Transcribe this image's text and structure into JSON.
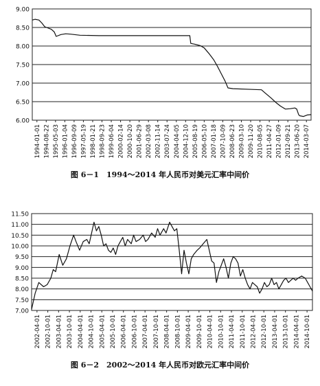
{
  "chart_data": [
    {
      "type": "line",
      "caption": "图 6－1　1994～2014 年人民币对美元汇率中间价",
      "ylim": [
        6.0,
        9.0
      ],
      "y_ticks": [
        "6.00",
        "6.50",
        "7.00",
        "7.50",
        "8.00",
        "8.50",
        "9.00"
      ],
      "x_tick_labels": [
        "1994-01-01",
        "1994-08-22",
        "1995-05-03",
        "1996-01-04",
        "1996-09-09",
        "1997-05-19",
        "1998-01-21",
        "1998-09-23",
        "1999-06-04",
        "2000-02-14",
        "2000-10-20",
        "2001-06-29",
        "2002-03-08",
        "2002-11-14",
        "2003-07-24",
        "2004-04-05",
        "2004-12-10",
        "2005-08-19",
        "2006-05-10",
        "2007-01-18",
        "2007-10-09",
        "2008-06-23",
        "2009-03-10",
        "2009-11-20",
        "2010-08-05",
        "2011-04-27",
        "2012-01-09",
        "2012-09-21",
        "2013-06-20",
        "2014-03-07"
      ],
      "grid": "horizontal",
      "series": [
        {
          "values": [
            [
              0,
              8.7
            ],
            [
              0.3,
              8.72
            ],
            [
              0.7,
              8.7
            ],
            [
              1,
              8.62
            ],
            [
              1.3,
              8.52
            ],
            [
              1.6,
              8.49
            ],
            [
              2,
              8.45
            ],
            [
              2.3,
              8.38
            ],
            [
              2.5,
              8.26
            ],
            [
              3,
              8.31
            ],
            [
              3.5,
              8.33
            ],
            [
              4,
              8.32
            ],
            [
              5,
              8.29
            ],
            [
              7,
              8.28
            ],
            [
              10,
              8.28
            ],
            [
              13,
              8.28
            ],
            [
              15,
              8.28
            ],
            [
              16.5,
              8.28
            ],
            [
              16.6,
              8.07
            ],
            [
              17,
              8.05
            ],
            [
              17.6,
              8.01
            ],
            [
              18,
              7.95
            ],
            [
              18.5,
              7.8
            ],
            [
              19,
              7.63
            ],
            [
              19.4,
              7.45
            ],
            [
              19.8,
              7.25
            ],
            [
              20.2,
              7.05
            ],
            [
              20.5,
              6.87
            ],
            [
              21,
              6.85
            ],
            [
              23,
              6.83
            ],
            [
              24,
              6.82
            ],
            [
              24.4,
              6.73
            ],
            [
              25,
              6.6
            ],
            [
              25.5,
              6.48
            ],
            [
              26,
              6.38
            ],
            [
              26.5,
              6.3
            ],
            [
              27,
              6.31
            ],
            [
              27.5,
              6.33
            ],
            [
              27.7,
              6.3
            ],
            [
              27.9,
              6.15
            ],
            [
              28,
              6.12
            ],
            [
              28.4,
              6.1
            ],
            [
              28.8,
              6.14
            ],
            [
              29.2,
              6.15
            ]
          ]
        }
      ]
    },
    {
      "type": "line",
      "caption": "图 6－2　2002～2014 年人民币对欧元汇率中间价",
      "ylim": [
        7.0,
        11.5
      ],
      "y_ticks": [
        "7.00",
        "7.50",
        "8.00",
        "8.50",
        "9.00",
        "9.50",
        "10.00",
        "10.50",
        "11.00",
        "11.50"
      ],
      "x_tick_labels": [
        "2002-04-01",
        "2002-10-01",
        "2003-04-01",
        "2003-10-01",
        "2004-04-01",
        "2004-10-01",
        "2005-04-01",
        "2005-10-01",
        "2006-04-01",
        "2006-10-01",
        "2007-04-01",
        "2007-10-01",
        "2008-04-01",
        "2008-10-01",
        "2009-04-01",
        "2009-10-01",
        "2010-04-01",
        "2010-10-01",
        "2011-04-01",
        "2011-10-01",
        "2012-04-01",
        "2012-10-01",
        "2013-04-01",
        "2013-10-01",
        "2014-04-01",
        "2014-10-01"
      ],
      "grid": "horizontal",
      "series": [
        {
          "values": [
            [
              0,
              7.05
            ],
            [
              0.3,
              7.8
            ],
            [
              0.6,
              8.3
            ],
            [
              1,
              8.1
            ],
            [
              1.3,
              8.2
            ],
            [
              1.6,
              8.5
            ],
            [
              1.8,
              8.9
            ],
            [
              2,
              8.8
            ],
            [
              2.3,
              9.6
            ],
            [
              2.6,
              9.1
            ],
            [
              2.9,
              9.4
            ],
            [
              3.2,
              10.0
            ],
            [
              3.5,
              10.5
            ],
            [
              3.7,
              10.2
            ],
            [
              4,
              9.8
            ],
            [
              4.3,
              10.2
            ],
            [
              4.6,
              10.3
            ],
            [
              4.8,
              10.1
            ],
            [
              5,
              10.6
            ],
            [
              5.2,
              11.1
            ],
            [
              5.4,
              10.7
            ],
            [
              5.6,
              10.9
            ],
            [
              5.8,
              10.5
            ],
            [
              6,
              10.0
            ],
            [
              6.2,
              10.1
            ],
            [
              6.4,
              9.8
            ],
            [
              6.6,
              9.7
            ],
            [
              6.8,
              9.9
            ],
            [
              7,
              9.6
            ],
            [
              7.2,
              10.0
            ],
            [
              7.4,
              10.2
            ],
            [
              7.6,
              10.4
            ],
            [
              7.8,
              10.0
            ],
            [
              8,
              10.3
            ],
            [
              8.3,
              10.1
            ],
            [
              8.5,
              10.5
            ],
            [
              8.7,
              10.2
            ],
            [
              9,
              10.3
            ],
            [
              9.3,
              10.5
            ],
            [
              9.5,
              10.2
            ],
            [
              9.7,
              10.3
            ],
            [
              10,
              10.6
            ],
            [
              10.3,
              10.4
            ],
            [
              10.5,
              10.8
            ],
            [
              10.7,
              10.5
            ],
            [
              11,
              10.8
            ],
            [
              11.2,
              10.6
            ],
            [
              11.5,
              11.1
            ],
            [
              11.7,
              10.9
            ],
            [
              11.9,
              10.7
            ],
            [
              12.1,
              10.8
            ],
            [
              12.3,
              9.8
            ],
            [
              12.5,
              8.7
            ],
            [
              12.7,
              9.8
            ],
            [
              12.9,
              9.2
            ],
            [
              13.1,
              8.7
            ],
            [
              13.3,
              9.4
            ],
            [
              13.5,
              9.6
            ],
            [
              13.8,
              9.8
            ],
            [
              14,
              9.9
            ],
            [
              14.3,
              10.1
            ],
            [
              14.6,
              10.3
            ],
            [
              14.8,
              9.8
            ],
            [
              15,
              9.3
            ],
            [
              15.2,
              9.2
            ],
            [
              15.4,
              8.3
            ],
            [
              15.6,
              8.8
            ],
            [
              15.8,
              9.1
            ],
            [
              16,
              9.4
            ],
            [
              16.2,
              9.0
            ],
            [
              16.4,
              8.5
            ],
            [
              16.6,
              9.2
            ],
            [
              16.8,
              9.5
            ],
            [
              17,
              9.4
            ],
            [
              17.2,
              9.2
            ],
            [
              17.4,
              8.6
            ],
            [
              17.6,
              8.9
            ],
            [
              17.8,
              8.5
            ],
            [
              18,
              8.2
            ],
            [
              18.2,
              8.0
            ],
            [
              18.4,
              8.3
            ],
            [
              18.6,
              8.2
            ],
            [
              18.8,
              8.1
            ],
            [
              19,
              7.8
            ],
            [
              19.2,
              8.0
            ],
            [
              19.4,
              8.3
            ],
            [
              19.6,
              8.1
            ],
            [
              19.8,
              8.2
            ],
            [
              20,
              8.5
            ],
            [
              20.2,
              8.2
            ],
            [
              20.4,
              8.3
            ],
            [
              20.6,
              8.0
            ],
            [
              20.8,
              8.2
            ],
            [
              21,
              8.4
            ],
            [
              21.2,
              8.5
            ],
            [
              21.4,
              8.3
            ],
            [
              21.6,
              8.4
            ],
            [
              21.8,
              8.5
            ],
            [
              22,
              8.4
            ],
            [
              22.2,
              8.5
            ],
            [
              22.5,
              8.6
            ],
            [
              22.8,
              8.5
            ],
            [
              23,
              8.3
            ],
            [
              23.2,
              8.1
            ],
            [
              23.4,
              7.9
            ]
          ]
        }
      ]
    }
  ]
}
